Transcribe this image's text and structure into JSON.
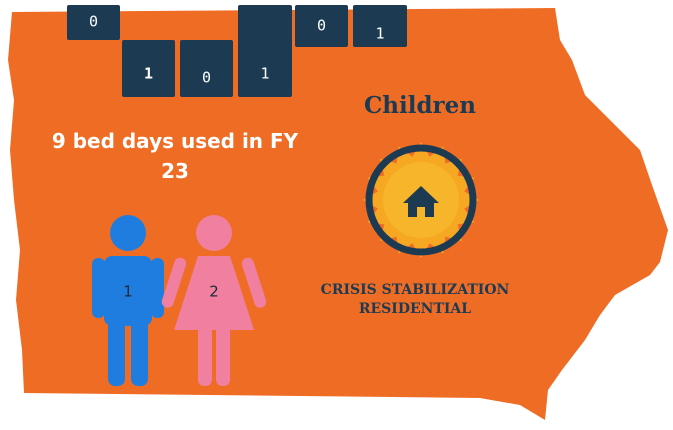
{
  "boxes": [
    "0",
    "1",
    "0",
    "1",
    "0",
    "1"
  ],
  "stat": "9 bed days used in FY 23",
  "category": "Children",
  "figures": {
    "male": "1",
    "female": "2"
  },
  "program": "CRISIS STABILIZATION RESIDENTIAL"
}
